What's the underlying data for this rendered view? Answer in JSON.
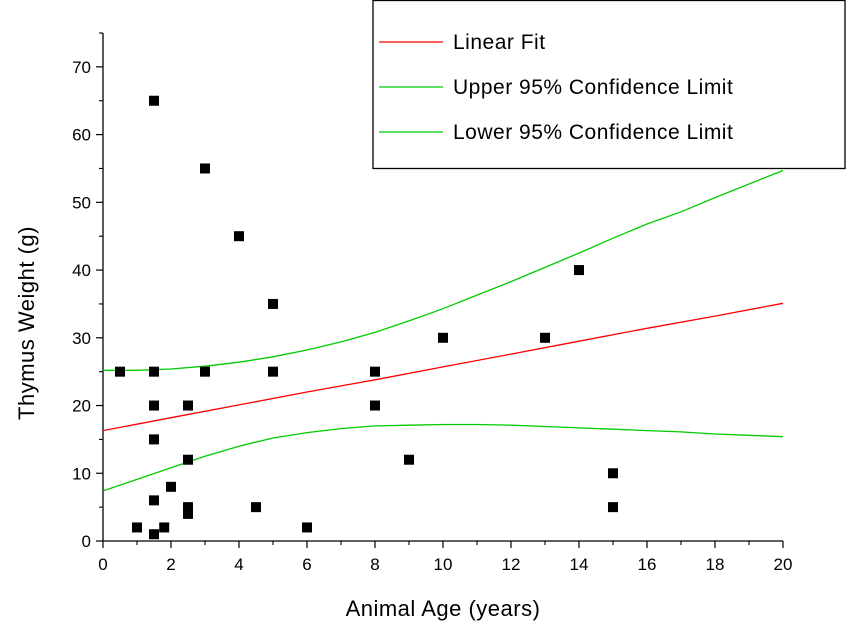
{
  "colors": {
    "fit": "#ff0000",
    "confidence": "#00cc00",
    "points": "#000000",
    "axis": "#000000",
    "background": "#ffffff"
  },
  "chart_data": {
    "type": "scatter",
    "title": "",
    "xlabel": "Animal Age (years)",
    "ylabel": "Thymus Weight (g)",
    "xlim": [
      0,
      20
    ],
    "ylim": [
      0,
      75
    ],
    "x_ticks": [
      0,
      2,
      4,
      6,
      8,
      10,
      12,
      14,
      16,
      18,
      20
    ],
    "y_ticks": [
      0,
      10,
      20,
      30,
      40,
      50,
      60,
      70
    ],
    "grid": false,
    "legend_position": "top-right",
    "points": [
      {
        "x": 0.5,
        "y": 25
      },
      {
        "x": 1.0,
        "y": 2
      },
      {
        "x": 1.5,
        "y": 65
      },
      {
        "x": 1.5,
        "y": 25
      },
      {
        "x": 1.5,
        "y": 20
      },
      {
        "x": 1.5,
        "y": 15
      },
      {
        "x": 1.5,
        "y": 6
      },
      {
        "x": 1.5,
        "y": 1
      },
      {
        "x": 1.8,
        "y": 2
      },
      {
        "x": 2.0,
        "y": 8
      },
      {
        "x": 2.5,
        "y": 20
      },
      {
        "x": 2.5,
        "y": 12
      },
      {
        "x": 2.5,
        "y": 5
      },
      {
        "x": 2.5,
        "y": 4
      },
      {
        "x": 3.0,
        "y": 55
      },
      {
        "x": 3.0,
        "y": 25
      },
      {
        "x": 4.0,
        "y": 45
      },
      {
        "x": 4.5,
        "y": 5
      },
      {
        "x": 5.0,
        "y": 35
      },
      {
        "x": 5.0,
        "y": 25
      },
      {
        "x": 6.0,
        "y": 2
      },
      {
        "x": 8.0,
        "y": 25
      },
      {
        "x": 8.0,
        "y": 20
      },
      {
        "x": 9.0,
        "y": 12
      },
      {
        "x": 10.0,
        "y": 30
      },
      {
        "x": 13.0,
        "y": 30
      },
      {
        "x": 14.0,
        "y": 40
      },
      {
        "x": 15.0,
        "y": 10
      },
      {
        "x": 15.0,
        "y": 5
      }
    ],
    "series": [
      {
        "name": "Linear Fit",
        "color": "#ff0000",
        "x": [
          0,
          2,
          4,
          6,
          8,
          10,
          12,
          14,
          16,
          18,
          20
        ],
        "y": [
          16.3,
          18.2,
          20.1,
          22.0,
          23.8,
          25.7,
          27.6,
          29.5,
          31.4,
          33.2,
          35.1
        ]
      },
      {
        "name": "Upper 95% Confidence Limit",
        "color": "#00cc00",
        "x": [
          0,
          1,
          2,
          3,
          4,
          5,
          6,
          7,
          8,
          9,
          10,
          11,
          12,
          13,
          14,
          15,
          16,
          17,
          18,
          19,
          20
        ],
        "y": [
          25.2,
          25.2,
          25.4,
          25.8,
          26.4,
          27.2,
          28.2,
          29.4,
          30.8,
          32.5,
          34.3,
          36.3,
          38.3,
          40.4,
          42.5,
          44.7,
          46.8,
          48.6,
          50.7,
          52.7,
          54.7
        ]
      },
      {
        "name": "Lower 95% Confidence Limit",
        "color": "#00cc00",
        "x": [
          0,
          1,
          2,
          3,
          4,
          5,
          6,
          7,
          8,
          9,
          10,
          11,
          12,
          13,
          14,
          15,
          16,
          17,
          18,
          19,
          20
        ],
        "y": [
          7.4,
          9.1,
          10.8,
          12.5,
          14.0,
          15.2,
          16.0,
          16.6,
          17.0,
          17.1,
          17.2,
          17.2,
          17.1,
          16.9,
          16.7,
          16.5,
          16.3,
          16.1,
          15.8,
          15.6,
          15.4
        ]
      }
    ]
  }
}
